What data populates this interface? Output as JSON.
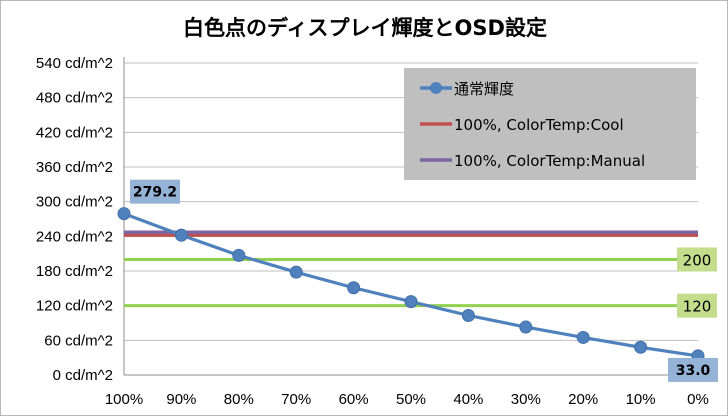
{
  "chart_data": {
    "type": "line",
    "title": "白色点のディスプレイ輝度とOSD設定",
    "xlabel": "",
    "ylabel": "",
    "categories": [
      "100%",
      "90%",
      "80%",
      "70%",
      "60%",
      "50%",
      "40%",
      "30%",
      "20%",
      "10%",
      "0%"
    ],
    "yticks": [
      "0 cd/m^2",
      "60 cd/m^2",
      "120 cd/m^2",
      "180 cd/m^2",
      "240 cd/m^2",
      "300 cd/m^2",
      "360 cd/m^2",
      "420 cd/m^2",
      "480 cd/m^2",
      "540 cd/m^2"
    ],
    "ylim": [
      0,
      540
    ],
    "grid": "horizontal",
    "legend_position": "top-right",
    "series": [
      {
        "name": "通常輝度",
        "color": "#4f81bd",
        "marker": "circle",
        "values": [
          279.2,
          242,
          207,
          178,
          151,
          127,
          103,
          83,
          65,
          48,
          33.0
        ]
      },
      {
        "name": "100%, ColorTemp:Cool",
        "color": "#c0504d",
        "constant": 242
      },
      {
        "name": "100%, ColorTemp:Manual",
        "color": "#8064a2",
        "constant": 247
      }
    ],
    "reference_lines": [
      {
        "value": 200,
        "label": "200",
        "color": "#92d050"
      },
      {
        "value": 120,
        "label": "120",
        "color": "#92d050"
      }
    ],
    "point_labels": [
      {
        "index": 0,
        "label": "279.2"
      },
      {
        "index": 10,
        "label": "33.0"
      }
    ]
  }
}
